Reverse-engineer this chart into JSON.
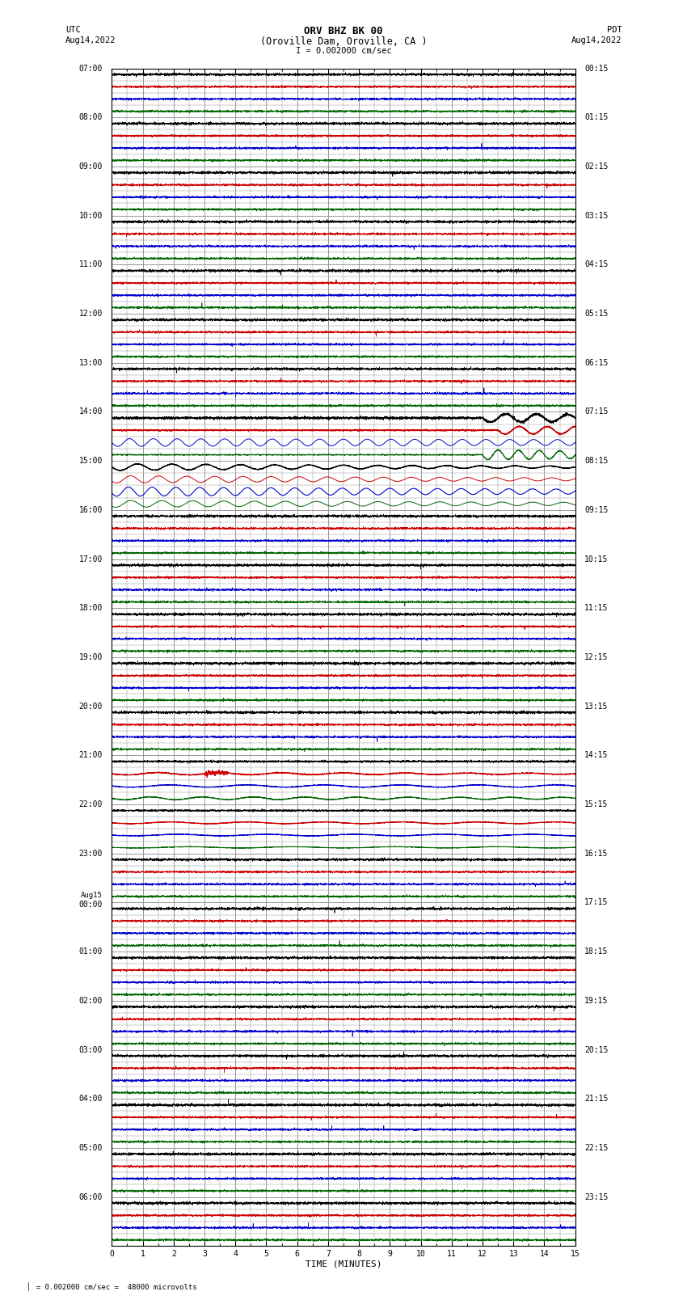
{
  "title_line1": "ORV BHZ BK 00",
  "title_line2": "(Oroville Dam, Oroville, CA )",
  "title_line3": "I = 0.002000 cm/sec",
  "left_label_top": "UTC",
  "left_label_date": "Aug14,2022",
  "right_label_top": "PDT",
  "right_label_date": "Aug14,2022",
  "xlabel": "TIME (MINUTES)",
  "footer_scale": "= 0.002000 cm/sec =  48000 microvolts",
  "background_color": "#ffffff",
  "grid_color": "#888888",
  "num_rows": 24,
  "subtraces_per_row": 4,
  "left_times": [
    "07:00",
    "",
    "",
    "",
    "08:00",
    "",
    "",
    "",
    "09:00",
    "",
    "",
    "",
    "10:00",
    "",
    "",
    "",
    "11:00",
    "",
    "",
    "",
    "12:00",
    "",
    "",
    "",
    "13:00",
    "",
    "",
    "",
    "14:00",
    "",
    "",
    "",
    "15:00",
    "",
    "",
    "",
    "16:00",
    "",
    "",
    "",
    "17:00",
    "",
    "",
    "",
    "18:00",
    "",
    "",
    "",
    "19:00",
    "",
    "",
    "",
    "20:00",
    "",
    "",
    "",
    "21:00",
    "",
    "",
    "",
    "22:00",
    "",
    "",
    "",
    "23:00",
    "",
    "",
    "",
    "Aug15\n00:00",
    "",
    "",
    "",
    "01:00",
    "",
    "",
    "",
    "02:00",
    "",
    "",
    "",
    "03:00",
    "",
    "",
    "",
    "04:00",
    "",
    "",
    "",
    "05:00",
    "",
    "",
    "",
    "06:00",
    "",
    ""
  ],
  "right_times": [
    "00:15",
    "",
    "",
    "",
    "01:15",
    "",
    "",
    "",
    "02:15",
    "",
    "",
    "",
    "03:15",
    "",
    "",
    "",
    "04:15",
    "",
    "",
    "",
    "05:15",
    "",
    "",
    "",
    "06:15",
    "",
    "",
    "",
    "07:15",
    "",
    "",
    "",
    "08:15",
    "",
    "",
    "",
    "09:15",
    "",
    "",
    "",
    "10:15",
    "",
    "",
    "",
    "11:15",
    "",
    "",
    "",
    "12:15",
    "",
    "",
    "",
    "13:15",
    "",
    "",
    "",
    "14:15",
    "",
    "",
    "",
    "15:15",
    "",
    "",
    "",
    "16:15",
    "",
    "",
    "",
    "17:15",
    "",
    "",
    "",
    "18:15",
    "",
    "",
    "",
    "19:15",
    "",
    "",
    "",
    "20:15",
    "",
    "",
    "",
    "21:15",
    "",
    "",
    "",
    "22:15",
    "",
    "",
    "",
    "23:15",
    "",
    ""
  ],
  "event_big_row": 7,
  "event_small_row": 14,
  "colors": {
    "black": "#000000",
    "red": "#cc0000",
    "blue": "#0000cc",
    "green": "#006600"
  }
}
